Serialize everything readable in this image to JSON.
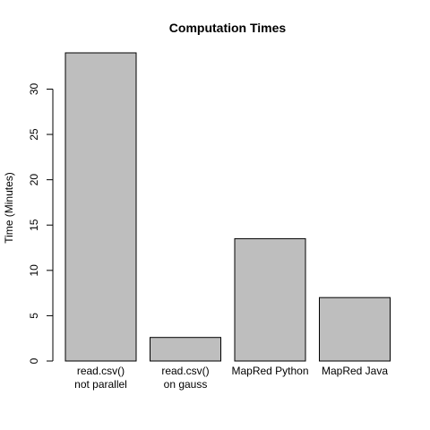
{
  "chart_data": {
    "type": "bar",
    "title": "Computation Times",
    "xlabel": "",
    "ylabel": "Time (Minutes)",
    "categories": [
      [
        "read.csv()",
        "not parallel"
      ],
      [
        "read.csv()",
        "on gauss"
      ],
      [
        "MapRed Python"
      ],
      [
        "MapRed Java"
      ]
    ],
    "values": [
      34.0,
      2.6,
      13.5,
      7.0
    ],
    "ylim": [
      0,
      34
    ],
    "yticks": [
      0,
      5,
      10,
      15,
      20,
      25,
      30
    ],
    "grid": false,
    "legend": "none",
    "colors": {
      "bar_fill": "#bebebe",
      "bar_stroke": "#000000"
    }
  }
}
